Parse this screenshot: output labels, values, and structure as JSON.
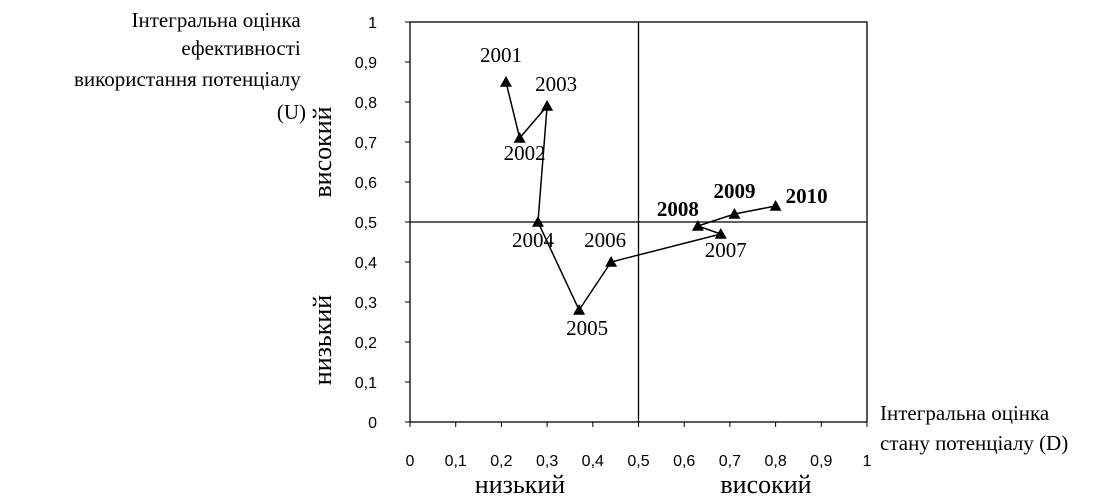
{
  "chart_data": {
    "type": "scatter",
    "title": "",
    "ylabel": [
      "Інтегральна оцінка",
      "ефективності",
      "використання потенціалу",
      "(U)"
    ],
    "xlabel": [
      "Інтегральна оцінка",
      "стану потенціалу (D)"
    ],
    "xlim": [
      0,
      1
    ],
    "ylim": [
      0,
      1
    ],
    "x_ticks": [
      "0",
      "0,1",
      "0,2",
      "0,3",
      "0,4",
      "0,5",
      "0,6",
      "0,7",
      "0,8",
      "0,9",
      "1"
    ],
    "y_ticks": [
      "0",
      "0,1",
      "0,2",
      "0,3",
      "0,4",
      "0,5",
      "0,6",
      "0,7",
      "0,8",
      "0,9",
      "1"
    ],
    "quadrant_split": {
      "x": 0.5,
      "y": 0.5
    },
    "zone_labels": {
      "x_low": "низький",
      "x_high": "високий",
      "y_low": "низький",
      "y_high": "високий"
    },
    "connected": true,
    "points": [
      {
        "label": "2001",
        "x": 0.21,
        "y": 0.85
      },
      {
        "label": "2002",
        "x": 0.24,
        "y": 0.71
      },
      {
        "label": "2003",
        "x": 0.3,
        "y": 0.79
      },
      {
        "label": "2004",
        "x": 0.28,
        "y": 0.5
      },
      {
        "label": "2005",
        "x": 0.37,
        "y": 0.28
      },
      {
        "label": "2006",
        "x": 0.44,
        "y": 0.4
      },
      {
        "label": "2007",
        "x": 0.68,
        "y": 0.47
      },
      {
        "label": "2008",
        "x": 0.63,
        "y": 0.49
      },
      {
        "label": "2009",
        "x": 0.71,
        "y": 0.52
      },
      {
        "label": "2010",
        "x": 0.8,
        "y": 0.54
      }
    ],
    "bold_labels": [
      "2008",
      "2009",
      "2010"
    ],
    "grid": false
  }
}
